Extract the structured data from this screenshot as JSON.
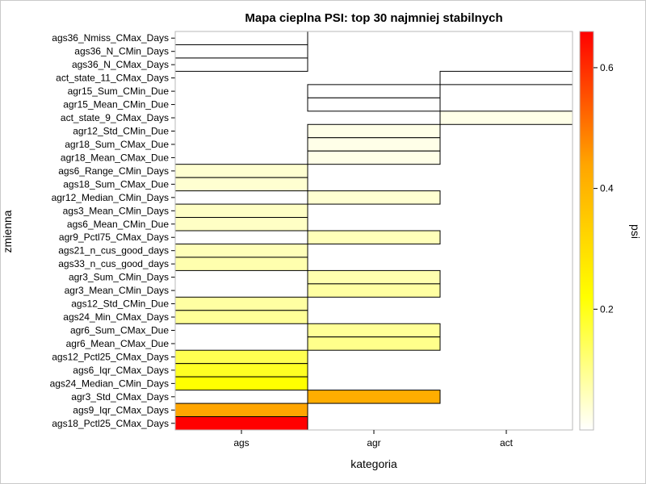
{
  "chart_data": {
    "type": "heatmap",
    "title": "Mapa cieplna PSI: top 30 najmniej stabilnych",
    "xlabel": "kategoria",
    "ylabel": "zmienna",
    "colorbar_label": "psi",
    "x_categories": [
      "ags",
      "agr",
      "act"
    ],
    "y_categories": [
      "ags36_Nmiss_CMax_Days",
      "ags36_N_CMin_Days",
      "ags36_N_CMax_Days",
      "act_state_11_CMax_Days",
      "agr15_Sum_CMin_Due",
      "agr15_Mean_CMin_Due",
      "act_state_9_CMax_Days",
      "agr12_Std_CMin_Due",
      "agr18_Sum_CMax_Due",
      "agr18_Mean_CMax_Due",
      "ags6_Range_CMin_Days",
      "ags18_Sum_CMax_Due",
      "agr12_Median_CMin_Days",
      "ags3_Mean_CMin_Days",
      "ags6_Mean_CMin_Due",
      "agr9_Pctl75_CMax_Days",
      "ags21_n_cus_good_days",
      "ags33_n_cus_good_days",
      "agr3_Sum_CMin_Days",
      "agr3_Mean_CMin_Days",
      "ags12_Std_CMin_Due",
      "ags24_Min_CMax_Days",
      "agr6_Sum_CMax_Due",
      "agr6_Mean_CMax_Due",
      "ags12_Pctl25_CMax_Days",
      "ags6_Iqr_CMax_Days",
      "ags24_Median_CMin_Days",
      "agr3_Std_CMax_Days",
      "ags9_Iqr_CMax_Days",
      "ags18_Pctl25_CMax_Days"
    ],
    "cells": [
      {
        "y": "ags36_Nmiss_CMax_Days",
        "x": "ags",
        "psi": 0.0
      },
      {
        "y": "ags36_N_CMin_Days",
        "x": "ags",
        "psi": 0.0
      },
      {
        "y": "ags36_N_CMax_Days",
        "x": "ags",
        "psi": 0.0
      },
      {
        "y": "act_state_11_CMax_Days",
        "x": "act",
        "psi": 0.0
      },
      {
        "y": "agr15_Sum_CMin_Due",
        "x": "agr",
        "psi": 0.0
      },
      {
        "y": "agr15_Mean_CMin_Due",
        "x": "agr",
        "psi": 0.0
      },
      {
        "y": "act_state_9_CMax_Days",
        "x": "act",
        "psi": 0.02
      },
      {
        "y": "agr12_Std_CMin_Due",
        "x": "agr",
        "psi": 0.02
      },
      {
        "y": "agr18_Sum_CMax_Due",
        "x": "agr",
        "psi": 0.02
      },
      {
        "y": "agr18_Mean_CMax_Due",
        "x": "agr",
        "psi": 0.02
      },
      {
        "y": "ags6_Range_CMin_Days",
        "x": "ags",
        "psi": 0.04
      },
      {
        "y": "ags18_Sum_CMax_Due",
        "x": "ags",
        "psi": 0.04
      },
      {
        "y": "agr12_Median_CMin_Days",
        "x": "agr",
        "psi": 0.04
      },
      {
        "y": "ags3_Mean_CMin_Days",
        "x": "ags",
        "psi": 0.05
      },
      {
        "y": "ags6_Mean_CMin_Due",
        "x": "ags",
        "psi": 0.05
      },
      {
        "y": "agr9_Pctl75_CMax_Days",
        "x": "agr",
        "psi": 0.06
      },
      {
        "y": "ags21_n_cus_good_days",
        "x": "ags",
        "psi": 0.06
      },
      {
        "y": "ags33_n_cus_good_days",
        "x": "ags",
        "psi": 0.07
      },
      {
        "y": "agr3_Sum_CMin_Days",
        "x": "agr",
        "psi": 0.07
      },
      {
        "y": "agr3_Mean_CMin_Days",
        "x": "agr",
        "psi": 0.08
      },
      {
        "y": "ags12_Std_CMin_Due",
        "x": "ags",
        "psi": 0.08
      },
      {
        "y": "ags24_Min_CMax_Days",
        "x": "ags",
        "psi": 0.09
      },
      {
        "y": "agr6_Sum_CMax_Due",
        "x": "agr",
        "psi": 0.09
      },
      {
        "y": "agr6_Mean_CMax_Due",
        "x": "agr",
        "psi": 0.1
      },
      {
        "y": "ags12_Pctl25_CMax_Days",
        "x": "ags",
        "psi": 0.15
      },
      {
        "y": "ags6_Iqr_CMax_Days",
        "x": "ags",
        "psi": 0.19
      },
      {
        "y": "ags24_Median_CMin_Days",
        "x": "ags",
        "psi": 0.22
      },
      {
        "y": "agr3_Std_CMax_Days",
        "x": "agr",
        "psi": 0.42
      },
      {
        "y": "ags9_Iqr_CMax_Days",
        "x": "ags",
        "psi": 0.44
      },
      {
        "y": "ags18_Pctl25_CMax_Days",
        "x": "ags",
        "psi": 0.66
      }
    ],
    "colorscale": {
      "range": [
        0.0,
        0.66
      ],
      "stops": [
        "#ffffff",
        "#ffff00",
        "#ffa500",
        "#ff0000"
      ],
      "ticks": [
        "0.2",
        "0.4",
        "0.6"
      ],
      "tick_values": [
        0.2,
        0.4,
        0.6
      ]
    },
    "grid": false,
    "legend": "right"
  }
}
